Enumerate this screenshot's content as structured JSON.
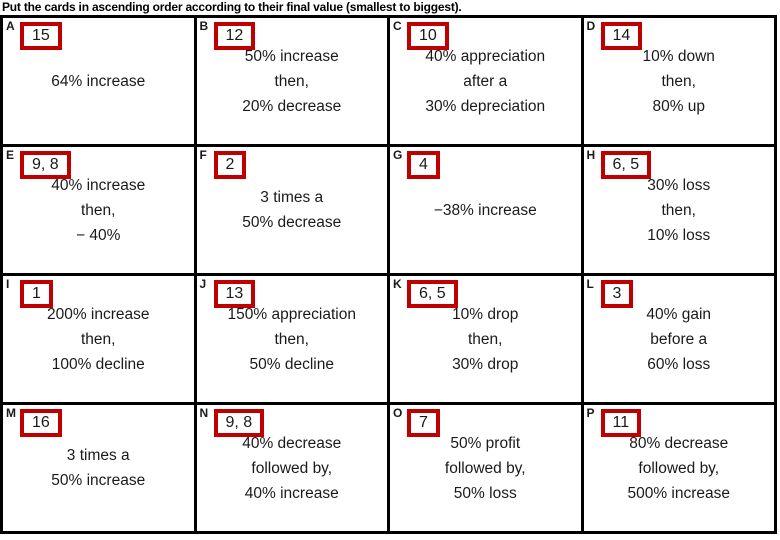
{
  "title": "Put the cards in ascending order according to their final value (smallest to biggest).",
  "colors": {
    "tag_border": "#c00000",
    "grid_border": "#000000",
    "text": "#1a1a1a",
    "background": "#ffffff"
  },
  "cards": [
    {
      "letter": "A",
      "tag": "15",
      "lines": [
        "64% increase"
      ]
    },
    {
      "letter": "B",
      "tag": "12",
      "lines": [
        "50% increase",
        "then,",
        "20% decrease"
      ]
    },
    {
      "letter": "C",
      "tag": "10",
      "lines": [
        "40% appreciation",
        "after a",
        "30% depreciation"
      ]
    },
    {
      "letter": "D",
      "tag": "14",
      "lines": [
        "10% down",
        "then,",
        "80% up"
      ]
    },
    {
      "letter": "E",
      "tag": "9, 8",
      "lines": [
        "40% increase",
        "then,",
        "− 40%"
      ]
    },
    {
      "letter": "F",
      "tag": "2",
      "lines": [
        "3 times a",
        "50% decrease"
      ]
    },
    {
      "letter": "G",
      "tag": "4",
      "lines": [
        "−38% increase"
      ]
    },
    {
      "letter": "H",
      "tag": "6, 5",
      "lines": [
        "30% loss",
        "then,",
        "10% loss"
      ]
    },
    {
      "letter": "I",
      "tag": "1",
      "lines": [
        "200% increase",
        "then,",
        "100% decline"
      ]
    },
    {
      "letter": "J",
      "tag": "13",
      "lines": [
        "150% appreciation",
        "then,",
        "50% decline"
      ]
    },
    {
      "letter": "K",
      "tag": "6, 5",
      "lines": [
        "10% drop",
        "then,",
        "30% drop"
      ]
    },
    {
      "letter": "L",
      "tag": "3",
      "lines": [
        "40% gain",
        "before a",
        "60% loss"
      ]
    },
    {
      "letter": "M",
      "tag": "16",
      "lines": [
        "3 times a",
        "50% increase"
      ]
    },
    {
      "letter": "N",
      "tag": "9, 8",
      "lines": [
        "40% decrease",
        "followed by,",
        "40% increase"
      ]
    },
    {
      "letter": "O",
      "tag": "7",
      "lines": [
        "50% profit",
        "followed by,",
        "50% loss"
      ]
    },
    {
      "letter": "P",
      "tag": "11",
      "lines": [
        "80% decrease",
        "followed by,",
        "500% increase"
      ]
    }
  ]
}
